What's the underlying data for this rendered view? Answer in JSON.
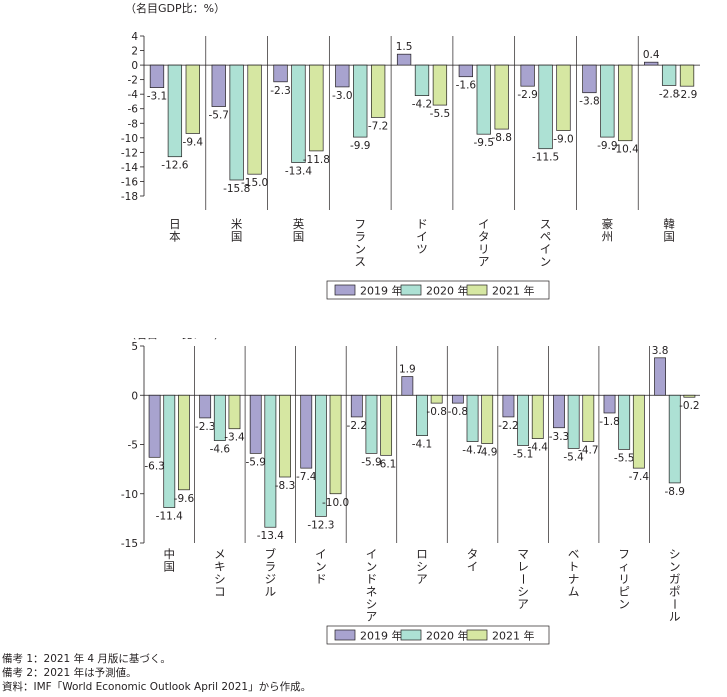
{
  "colors": {
    "2019": "#a8a3cf",
    "2020": "#ade1d4",
    "2021": "#d6e7a2",
    "stroke": "#231f20"
  },
  "chart_data": [
    {
      "type": "bar",
      "unit_label": "（名目GDP比：%）",
      "ylim": [
        -18,
        4
      ],
      "yticks": [
        4,
        2,
        0,
        -2,
        -4,
        -6,
        -8,
        -10,
        -12,
        -14,
        -16,
        -18
      ],
      "categories": [
        "日本",
        "米国",
        "英国",
        "フランス",
        "ドイツ",
        "イタリア",
        "スペイン",
        "豪州",
        "韓国"
      ],
      "series": [
        {
          "name": "2019 年",
          "values": [
            -3.1,
            -5.7,
            -2.3,
            -3.0,
            1.5,
            -1.6,
            -2.9,
            -3.8,
            0.4
          ]
        },
        {
          "name": "2020 年",
          "values": [
            -12.6,
            -15.8,
            -13.4,
            -9.9,
            -4.2,
            -9.5,
            -11.5,
            -9.9,
            -2.8
          ]
        },
        {
          "name": "2021 年",
          "values": [
            -9.4,
            -15.0,
            -11.8,
            -7.2,
            -5.5,
            -8.8,
            -9.0,
            -10.4,
            -2.9
          ]
        }
      ],
      "legend_position": "bottom"
    },
    {
      "type": "bar",
      "unit_label": "（名目GDP比：%）",
      "ylim": [
        -15,
        5
      ],
      "yticks": [
        5,
        0,
        -5,
        -10,
        -15
      ],
      "categories": [
        "中国",
        "メキシコ",
        "ブラジル",
        "インド",
        "インドネシア",
        "ロシア",
        "タイ",
        "マレーシア",
        "ベトナム",
        "フィリピン",
        "シンガポール"
      ],
      "series": [
        {
          "name": "2019 年",
          "values": [
            -6.3,
            -2.3,
            -5.9,
            -7.4,
            -2.2,
            1.9,
            -0.8,
            -2.2,
            -3.3,
            -1.8,
            3.8
          ]
        },
        {
          "name": "2020 年",
          "values": [
            -11.4,
            -4.6,
            -13.4,
            -12.3,
            -5.9,
            -4.1,
            -4.7,
            -5.1,
            -5.4,
            -5.5,
            -8.9
          ]
        },
        {
          "name": "2021 年",
          "values": [
            -9.6,
            -3.4,
            -8.3,
            -10.0,
            -6.1,
            -0.8,
            -4.9,
            -4.4,
            -4.7,
            -7.4,
            -0.2
          ]
        }
      ],
      "legend_position": "bottom"
    }
  ],
  "notes": [
    "備考 1：2021 年 4 月版に基づく。",
    "備考 2：2021 年は予測値。",
    "資料：IMF「World Economic Outlook April 2021」から作成。"
  ]
}
